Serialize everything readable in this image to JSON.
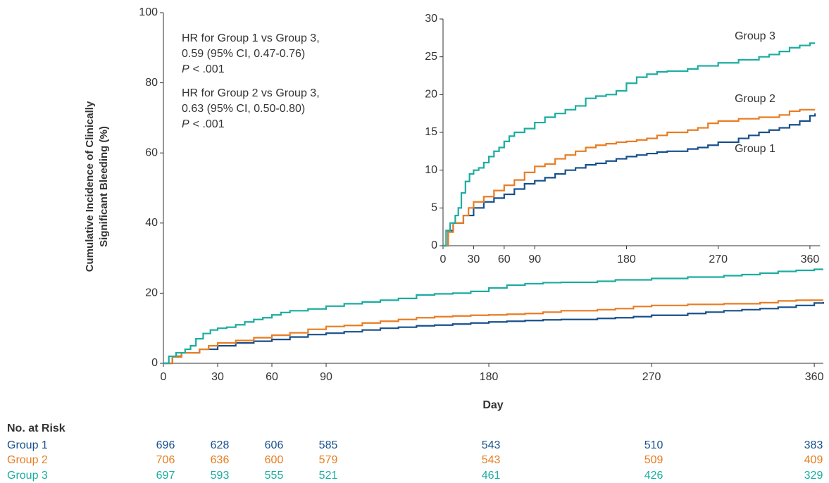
{
  "chart_data": [
    {
      "type": "step",
      "xlabel": "Day",
      "ylabel": [
        "Cumulative Incidence of Clinically",
        "Significant Bleeding (%)"
      ],
      "xlim": [
        0,
        365
      ],
      "ylim": [
        0,
        100
      ],
      "xticks": [
        0,
        30,
        60,
        90,
        180,
        270,
        360
      ],
      "yticks": [
        0,
        20,
        40,
        60,
        80,
        100
      ],
      "grid": false,
      "annotations": [
        {
          "lines": [
            "HR for Group 1 vs Group 3,",
            "0.59 (95% CI, 0.47-0.76)"
          ],
          "p_label": "P",
          "p_value": "< .001"
        },
        {
          "lines": [
            "HR for Group 2 vs Group 3,",
            "0.63 (95% CI, 0.50-0.80)"
          ],
          "p_label": "P",
          "p_value": "< .001"
        }
      ],
      "series": [
        {
          "name": "Group 1",
          "color": "#17508c",
          "x": [
            0,
            5,
            10,
            20,
            30,
            40,
            50,
            60,
            70,
            80,
            90,
            100,
            110,
            120,
            130,
            140,
            150,
            160,
            170,
            180,
            190,
            200,
            210,
            220,
            240,
            250,
            260,
            270,
            290,
            300,
            310,
            320,
            330,
            340,
            350,
            360,
            365
          ],
          "values": [
            0,
            2,
            3,
            4,
            5,
            5.8,
            6.3,
            6.8,
            7.5,
            8.2,
            8.6,
            9,
            9.5,
            10,
            10.3,
            10.7,
            10.9,
            11.2,
            11.5,
            11.8,
            12,
            12.2,
            12.4,
            12.5,
            12.8,
            13,
            13.3,
            13.7,
            14.2,
            14.6,
            15,
            15.3,
            15.6,
            16,
            16.5,
            17.2,
            17.5
          ]
        },
        {
          "name": "Group 2",
          "color": "#e87d22",
          "x": [
            0,
            5,
            10,
            20,
            25,
            30,
            40,
            50,
            60,
            70,
            80,
            90,
            100,
            110,
            120,
            130,
            140,
            150,
            160,
            170,
            180,
            190,
            200,
            210,
            220,
            240,
            250,
            260,
            270,
            290,
            310,
            330,
            340,
            350,
            365
          ],
          "values": [
            0,
            1.8,
            3,
            4,
            5,
            5.8,
            6.5,
            7.3,
            8,
            8.7,
            9.7,
            10.5,
            10.8,
            11.5,
            12,
            12.5,
            13,
            13.3,
            13.5,
            13.7,
            13.8,
            14,
            14.2,
            14.6,
            15,
            15.3,
            15.6,
            16.2,
            16.5,
            16.8,
            17,
            17.3,
            17.8,
            18,
            18
          ]
        },
        {
          "name": "Group 3",
          "color": "#1aada0",
          "x": [
            0,
            3,
            7,
            12,
            15,
            18,
            22,
            26,
            30,
            35,
            40,
            45,
            50,
            55,
            60,
            65,
            70,
            80,
            90,
            100,
            110,
            120,
            130,
            140,
            150,
            160,
            170,
            180,
            190,
            200,
            210,
            220,
            240,
            250,
            270,
            290,
            310,
            320,
            330,
            340,
            350,
            360,
            365
          ],
          "values": [
            0,
            2,
            3,
            4,
            5,
            7,
            8.5,
            9.5,
            10,
            10.3,
            11,
            11.8,
            12.5,
            13,
            13.8,
            14.5,
            15,
            15.5,
            16.3,
            17,
            17.5,
            18,
            18.5,
            19.5,
            19.8,
            20,
            20.5,
            21.5,
            22.3,
            22.7,
            23,
            23.1,
            23.4,
            23.8,
            24.2,
            24.6,
            25,
            25.3,
            25.7,
            26.2,
            26.5,
            26.8,
            26.8
          ]
        }
      ]
    },
    {
      "type": "inset",
      "xlim": [
        0,
        370
      ],
      "ylim": [
        0,
        30
      ],
      "xticks": [
        0,
        30,
        60,
        90,
        180,
        270,
        360
      ],
      "yticks": [
        0,
        5,
        10,
        15,
        20,
        25,
        30
      ]
    }
  ],
  "risk_table": {
    "title": "No. at Risk",
    "days": [
      0,
      30,
      60,
      90,
      180,
      270,
      360
    ],
    "rows": [
      {
        "label": "Group 1",
        "counts": [
          696,
          628,
          606,
          585,
          543,
          510,
          383
        ]
      },
      {
        "label": "Group 2",
        "counts": [
          706,
          636,
          600,
          579,
          543,
          509,
          409
        ]
      },
      {
        "label": "Group 3",
        "counts": [
          697,
          593,
          555,
          521,
          461,
          426,
          329
        ]
      }
    ]
  }
}
